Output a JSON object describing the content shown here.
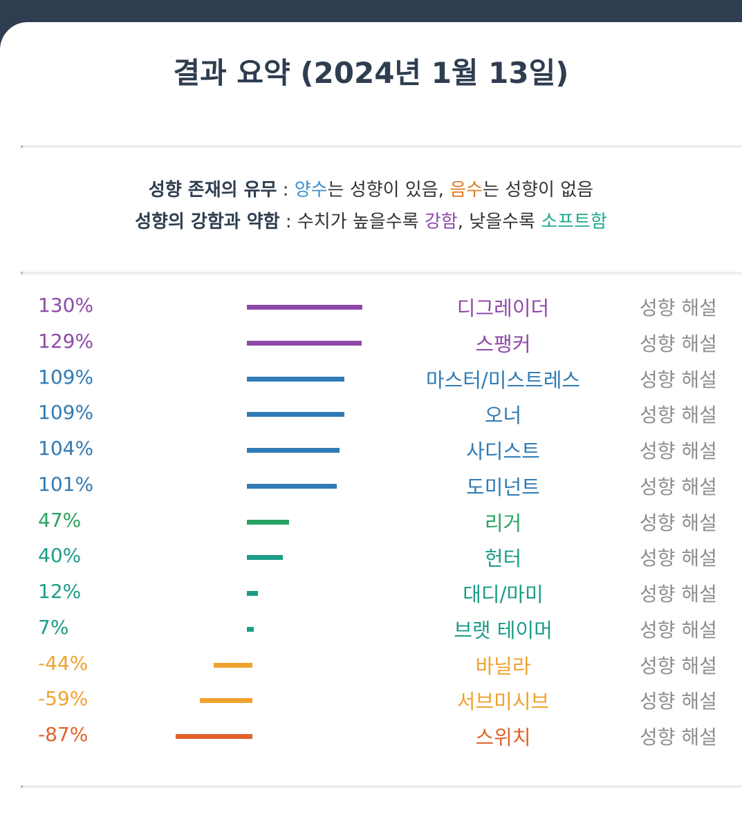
{
  "title": "결과 요약 (2024년 1월 13일)",
  "legend": {
    "line1": {
      "label": "성향 존재의 유무",
      "sep": " : ",
      "pos_word": "양수",
      "pos_rest": "는 성향이 있음, ",
      "neg_word": "음수",
      "neg_rest": "는 성향이 없음"
    },
    "line2": {
      "label": "성향의 강함과 약함",
      "sep": " : ",
      "text1": "수치가 높을수록 ",
      "strong_word": "강함",
      "text2": ", 낮을수록 ",
      "soft_word": "소프트함"
    }
  },
  "explain_label": "성향 해설",
  "colors": {
    "purple": "#8e4aa8",
    "blue": "#2f7bb5",
    "green": "#27a35f",
    "teal": "#1b9c87",
    "orange": "#f0a22e",
    "red": "#e0622a",
    "header": "#2e3d4f"
  },
  "chart_data": {
    "type": "bar",
    "orientation": "horizontal",
    "categories": [
      "디그레이더",
      "스팽커",
      "마스터/미스트레스",
      "오너",
      "사디스트",
      "도미넌트",
      "리거",
      "헌터",
      "대디/마미",
      "브랫 테이머",
      "바닐라",
      "서브미시브",
      "스위치"
    ],
    "values": [
      130,
      129,
      109,
      109,
      104,
      101,
      47,
      40,
      12,
      7,
      -44,
      -59,
      -87
    ],
    "value_labels": [
      "130%",
      "129%",
      "109%",
      "109%",
      "104%",
      "101%",
      "47%",
      "40%",
      "12%",
      "7%",
      "-44%",
      "-59%",
      "-87%"
    ],
    "colors": [
      "#8e4aa8",
      "#8e4aa8",
      "#2f7bb5",
      "#2f7bb5",
      "#2f7bb5",
      "#2f7bb5",
      "#27a35f",
      "#1b9c87",
      "#1b9c87",
      "#1b9c87",
      "#f0a22e",
      "#f0a22e",
      "#e0622a"
    ],
    "grid": false
  }
}
